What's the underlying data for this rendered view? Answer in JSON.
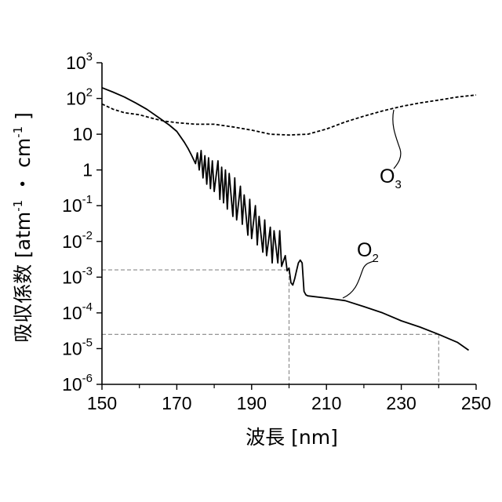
{
  "chart_data": {
    "type": "line",
    "xlabel": "波長 [nm]",
    "ylabel": {
      "text": "吸収係数 [atm",
      "sup1": "-1",
      "mid": " ・ cm",
      "sup2": "-1",
      "end": " ]"
    },
    "xlim": [
      150,
      250
    ],
    "ylim": [
      1e-06,
      1000
    ],
    "yscale": "log",
    "grid": false,
    "legend": "inline labels",
    "x_ticks": [
      "150",
      "170",
      "190",
      "210",
      "230",
      "250"
    ],
    "y_ticks": [
      {
        "base": "10",
        "exp": "3"
      },
      {
        "base": "10",
        "exp": "2"
      },
      {
        "base": "10",
        "exp": ""
      },
      {
        "base": "1",
        "exp": ""
      },
      {
        "base": "10",
        "exp": "-1"
      },
      {
        "base": "10",
        "exp": "-2"
      },
      {
        "base": "10",
        "exp": "-3"
      },
      {
        "base": "10",
        "exp": "-4"
      },
      {
        "base": "10",
        "exp": "-5"
      },
      {
        "base": "10",
        "exp": "-6"
      }
    ],
    "series": [
      {
        "name": "O₂",
        "label": {
          "main": "O",
          "sub": "2"
        },
        "style": "solid",
        "color": "#000000",
        "points": [
          [
            150,
            200
          ],
          [
            153,
            150
          ],
          [
            156,
            110
          ],
          [
            159,
            75
          ],
          [
            162,
            50
          ],
          [
            165,
            30
          ],
          [
            168,
            18
          ],
          [
            170,
            12
          ],
          [
            172,
            6
          ],
          [
            173,
            4
          ],
          [
            174,
            2.5
          ],
          [
            175,
            1.5
          ],
          [
            175.5,
            3
          ],
          [
            176,
            1.0
          ],
          [
            176.5,
            3.5
          ],
          [
            177,
            0.6
          ],
          [
            177.5,
            2.5
          ],
          [
            178,
            0.4
          ],
          [
            178.5,
            2.2
          ],
          [
            179,
            0.3
          ],
          [
            179.5,
            1.8
          ],
          [
            180,
            0.25
          ],
          [
            181,
            1.8
          ],
          [
            181.5,
            0.15
          ],
          [
            182,
            1.2
          ],
          [
            182.5,
            0.12
          ],
          [
            183,
            1.0
          ],
          [
            183.5,
            0.08
          ],
          [
            184,
            0.8
          ],
          [
            185,
            0.05
          ],
          [
            185.5,
            0.6
          ],
          [
            186,
            0.04
          ],
          [
            187,
            0.35
          ],
          [
            187.5,
            0.03
          ],
          [
            188,
            0.2
          ],
          [
            189,
            0.015
          ],
          [
            189.5,
            0.15
          ],
          [
            190,
            0.012
          ],
          [
            191,
            0.1
          ],
          [
            191.5,
            0.008
          ],
          [
            192,
            0.05
          ],
          [
            193,
            0.005
          ],
          [
            193.5,
            0.04
          ],
          [
            194,
            0.004
          ],
          [
            195,
            0.025
          ],
          [
            195.5,
            0.0025
          ],
          [
            196,
            0.02
          ],
          [
            197,
            0.0025
          ],
          [
            197.5,
            0.02
          ],
          [
            198,
            0.002
          ],
          [
            199,
            0.004
          ],
          [
            199.5,
            0.0015
          ],
          [
            200,
            0.0018
          ],
          [
            200.5,
            0.0007
          ],
          [
            201,
            0.0006
          ],
          [
            201.5,
            0.0009
          ],
          [
            202,
            0.0015
          ],
          [
            202.5,
            0.0025
          ],
          [
            203,
            0.003
          ],
          [
            203.5,
            0.0025
          ],
          [
            204,
            0.0004
          ],
          [
            204.5,
            0.00032
          ],
          [
            205,
            0.0003
          ],
          [
            210,
            0.00026
          ],
          [
            215,
            0.00022
          ],
          [
            220,
            0.00015
          ],
          [
            225,
            0.0001
          ],
          [
            230,
            6e-05
          ],
          [
            235,
            4e-05
          ],
          [
            240,
            2.5e-05
          ],
          [
            245,
            1.5e-05
          ],
          [
            248,
            9e-06
          ]
        ]
      },
      {
        "name": "O₃",
        "label": {
          "main": "O",
          "sub": "3"
        },
        "style": "dashed",
        "color": "#000000",
        "points": [
          [
            150,
            70
          ],
          [
            153,
            50
          ],
          [
            156,
            40
          ],
          [
            160,
            35
          ],
          [
            164,
            27
          ],
          [
            167,
            23
          ],
          [
            170,
            21
          ],
          [
            175,
            19
          ],
          [
            180,
            19
          ],
          [
            185,
            16
          ],
          [
            190,
            13
          ],
          [
            195,
            10
          ],
          [
            200,
            9.5
          ],
          [
            205,
            10
          ],
          [
            210,
            14
          ],
          [
            215,
            22
          ],
          [
            220,
            32
          ],
          [
            225,
            45
          ],
          [
            230,
            60
          ],
          [
            235,
            75
          ],
          [
            240,
            90
          ],
          [
            245,
            110
          ],
          [
            250,
            125
          ]
        ]
      }
    ],
    "annotations": [
      {
        "type": "reference",
        "x": 200,
        "y": 0.0016
      },
      {
        "type": "reference",
        "x": 240,
        "y": 2.5e-05
      }
    ]
  }
}
